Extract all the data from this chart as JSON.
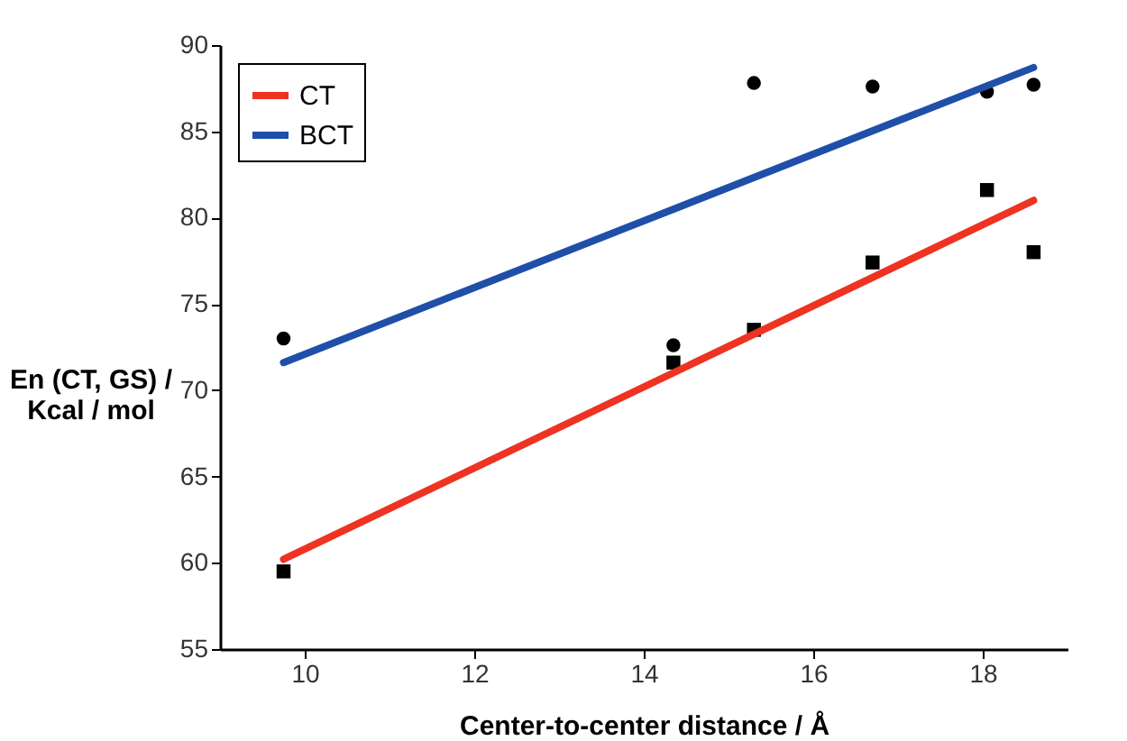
{
  "chart_data": {
    "type": "scatter",
    "xlabel": "Center-to-center distance / Å",
    "ylabel": "En (CT, GS) / Kcal / mol",
    "xlim": [
      9,
      19
    ],
    "xticks": [
      10,
      12,
      14,
      16,
      18
    ],
    "ylim": [
      55,
      90
    ],
    "yticks": [
      55,
      60,
      65,
      70,
      75,
      80,
      85,
      90
    ],
    "grid": false,
    "legend": "top left",
    "series": [
      {
        "marker": "square",
        "color": "#000000",
        "x": [
          9.75,
          14.35,
          15.3,
          16.7,
          18.05,
          18.6
        ],
        "values": [
          59.5,
          71.6,
          73.5,
          77.4,
          81.6,
          78.0
        ]
      },
      {
        "marker": "circle",
        "color": "#000000",
        "x": [
          9.75,
          14.35,
          15.3,
          16.7,
          18.05,
          18.6
        ],
        "values": [
          73.0,
          72.6,
          87.8,
          87.6,
          87.3,
          87.7
        ]
      },
      {
        "type": "line",
        "name": "CT",
        "color": "#ee3322",
        "x": [
          9.75,
          18.6
        ],
        "values": [
          60.2,
          81.0
        ]
      },
      {
        "type": "line",
        "name": "BCT",
        "color": "#1f4fa8",
        "x": [
          9.75,
          18.6
        ],
        "values": [
          71.6,
          88.7
        ]
      }
    ]
  }
}
